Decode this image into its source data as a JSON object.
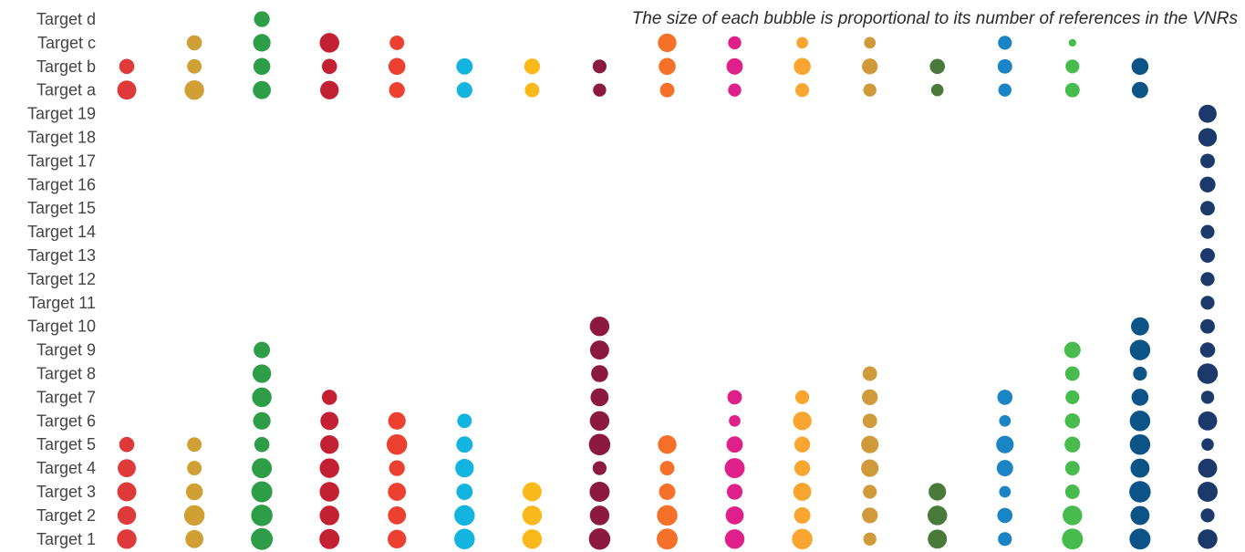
{
  "chart_data": {
    "type": "scatter",
    "annotation": "The size of each bubble is proportional to its number of references in the VNRs",
    "rows": [
      "Target d",
      "Target c",
      "Target b",
      "Target a",
      "Target 19",
      "Target 18",
      "Target 17",
      "Target 16",
      "Target 15",
      "Target 14",
      "Target 13",
      "Target 12",
      "Target 11",
      "Target 10",
      "Target 9",
      "Target 8",
      "Target 7",
      "Target 6",
      "Target 5",
      "Target 4",
      "Target 3",
      "Target 2",
      "Target 1"
    ],
    "colors": [
      "#e5243b",
      "#dda63a",
      "#4c9f38",
      "#c5192d",
      "#ff3a21",
      "#26bde2",
      "#fcc30b",
      "#a21942",
      "#fd6925",
      "#dd1367",
      "#fd9d24",
      "#bf8b2e",
      "#3f7e44",
      "#0a97d9",
      "#56c02b",
      "#00689d",
      "#19486a"
    ],
    "draw_colors": [
      "#e0393a",
      "#d0a035",
      "#2e9d48",
      "#c42033",
      "#ec4030",
      "#14b4e0",
      "#fbb81a",
      "#8c1a3e",
      "#f57028",
      "#e0208a",
      "#f9a530",
      "#d09a3a",
      "#4a7a3a",
      "#1a84c4",
      "#48bb4e",
      "#0c5487",
      "#1b3a6b"
    ],
    "series": [
      {
        "values": [
          null,
          null,
          12,
          19,
          null,
          null,
          null,
          null,
          null,
          null,
          null,
          null,
          null,
          null,
          null,
          null,
          null,
          null,
          12,
          17,
          19,
          18,
          20
        ]
      },
      {
        "values": [
          null,
          12,
          11,
          20,
          null,
          null,
          null,
          null,
          null,
          null,
          null,
          null,
          null,
          null,
          null,
          null,
          null,
          null,
          11,
          11,
          15,
          22,
          17
        ]
      },
      {
        "values": [
          13,
          16,
          15,
          17,
          null,
          null,
          null,
          null,
          null,
          null,
          null,
          null,
          null,
          null,
          14,
          18,
          20,
          16,
          12,
          21,
          23,
          24,
          25
        ]
      },
      {
        "values": [
          null,
          20,
          12,
          18,
          null,
          null,
          null,
          null,
          null,
          null,
          null,
          null,
          null,
          null,
          null,
          null,
          12,
          17,
          18,
          20,
          20,
          20,
          21
        ]
      },
      {
        "values": [
          null,
          11,
          15,
          13,
          null,
          null,
          null,
          null,
          null,
          null,
          null,
          null,
          null,
          null,
          null,
          null,
          null,
          16,
          22,
          13,
          17,
          17,
          18
        ]
      },
      {
        "values": [
          null,
          null,
          14,
          13,
          null,
          null,
          null,
          null,
          null,
          null,
          null,
          null,
          null,
          null,
          null,
          null,
          null,
          11,
          14,
          18,
          14,
          22,
          22
        ]
      },
      {
        "values": [
          null,
          null,
          13,
          11,
          null,
          null,
          null,
          null,
          null,
          null,
          null,
          null,
          null,
          null,
          null,
          null,
          null,
          null,
          null,
          null,
          19,
          20,
          20
        ]
      },
      {
        "values": [
          null,
          null,
          10,
          9,
          null,
          null,
          null,
          null,
          null,
          null,
          null,
          null,
          null,
          20,
          19,
          15,
          17,
          20,
          24,
          10,
          21,
          20,
          24
        ]
      },
      {
        "values": [
          null,
          18,
          15,
          11,
          null,
          null,
          null,
          null,
          null,
          null,
          null,
          null,
          null,
          null,
          null,
          null,
          null,
          null,
          18,
          11,
          14,
          22,
          23
        ]
      },
      {
        "values": [
          null,
          9,
          14,
          9,
          null,
          null,
          null,
          null,
          null,
          null,
          null,
          null,
          null,
          null,
          null,
          null,
          11,
          7,
          14,
          21,
          13,
          17,
          20
        ]
      },
      {
        "values": [
          null,
          7,
          15,
          10,
          null,
          null,
          null,
          null,
          null,
          null,
          null,
          null,
          null,
          null,
          null,
          null,
          10,
          18,
          13,
          13,
          17,
          14,
          22
        ]
      },
      {
        "values": [
          null,
          7,
          13,
          9,
          null,
          null,
          null,
          null,
          null,
          null,
          null,
          null,
          null,
          null,
          null,
          11,
          13,
          11,
          16,
          16,
          10,
          13,
          9
        ]
      },
      {
        "values": [
          null,
          null,
          12,
          8,
          null,
          null,
          null,
          null,
          null,
          null,
          null,
          null,
          null,
          null,
          null,
          null,
          null,
          null,
          null,
          null,
          16,
          20,
          19
        ]
      },
      {
        "values": [
          null,
          10,
          11,
          9,
          null,
          null,
          null,
          null,
          null,
          null,
          null,
          null,
          null,
          null,
          null,
          null,
          12,
          7,
          16,
          14,
          7,
          12,
          10
        ]
      },
      {
        "values": [
          null,
          3,
          10,
          11,
          null,
          null,
          null,
          null,
          null,
          null,
          null,
          null,
          null,
          null,
          14,
          11,
          10,
          12,
          13,
          11,
          11,
          20,
          23
        ]
      },
      {
        "values": [
          null,
          null,
          15,
          14,
          null,
          null,
          null,
          null,
          null,
          null,
          null,
          null,
          null,
          17,
          22,
          10,
          15,
          22,
          22,
          19,
          24,
          19,
          23
        ]
      },
      {
        "values": [
          null,
          null,
          null,
          null,
          17,
          18,
          11,
          13,
          11,
          10,
          11,
          10,
          10,
          11,
          12,
          22,
          9,
          19,
          8,
          19,
          21,
          10,
          20
        ]
      }
    ]
  }
}
